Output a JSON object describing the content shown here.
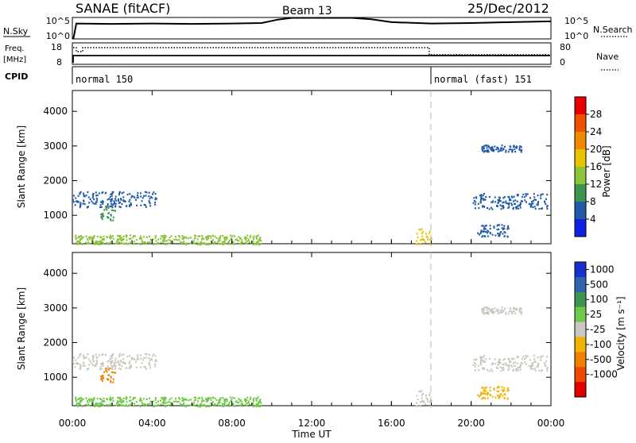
{
  "header": {
    "station": "SANAE (fitACF)",
    "beam": "Beam 13",
    "date": "25/Dec/2012"
  },
  "panels": {
    "nsky": {
      "label": "N.Sky",
      "right_label": "N.Search",
      "left_ticks": [
        "10^5",
        "10^0"
      ],
      "right_ticks": [
        "10^5",
        "10^0"
      ]
    },
    "freq": {
      "label_line1": "Freq.",
      "label_line2": "[MHz]",
      "right_label": "Nave",
      "left_ticks": [
        "18",
        "8"
      ],
      "right_ticks": [
        "80",
        "0"
      ]
    },
    "cpid": {
      "label": "CPID",
      "segments": [
        {
          "start_hour": 0.0,
          "text": "normal 150"
        },
        {
          "start_hour": 18.0,
          "text": "normal (fast) 151"
        }
      ]
    }
  },
  "x_axis": {
    "title": "Time UT",
    "ticks": [
      "00:00",
      "04:00",
      "08:00",
      "12:00",
      "16:00",
      "20:00",
      "00:00"
    ]
  },
  "range_axis": {
    "title": "Slant Range [km]",
    "ticks": [
      "4000",
      "3000",
      "2000",
      "1000"
    ]
  },
  "power_scale": {
    "title": "Power [dB]",
    "ticks": [
      "28",
      "24",
      "20",
      "16",
      "12",
      "8",
      "4"
    ],
    "colors": [
      "#e80000",
      "#f05000",
      "#f08800",
      "#e8c400",
      "#8cc43c",
      "#3c9650",
      "#205aa8",
      "#1020e0"
    ]
  },
  "velocity_scale": {
    "title": "Velocity [m s⁻¹]",
    "ticks": [
      "1000",
      "500",
      "100",
      "25",
      "-25",
      "-100",
      "-500",
      "-1000"
    ],
    "colors": [
      "#1830d0",
      "#2c64b0",
      "#3c9650",
      "#70c848",
      "#c8c8c0",
      "#f0b400",
      "#f08000",
      "#f04800",
      "#e00000"
    ]
  },
  "chart_data": {
    "type": "heatmap",
    "title": "SANAE (fitACF)  Beam 13  25/Dec/2012",
    "xlabel": "Time UT",
    "ylabel": "Slant Range [km]",
    "xlim_hours": [
      0,
      24
    ],
    "ylim_km": [
      180,
      4600
    ],
    "mode_change_hour": 18.0,
    "nsky_trace": [
      [
        0.2,
        0.72
      ],
      [
        2,
        0.7
      ],
      [
        4,
        0.72
      ],
      [
        6,
        0.7
      ],
      [
        8,
        0.72
      ],
      [
        9.5,
        0.74
      ],
      [
        10.3,
        0.9
      ],
      [
        11,
        0.98
      ],
      [
        14,
        0.98
      ],
      [
        15,
        0.92
      ],
      [
        16,
        0.78
      ],
      [
        18,
        0.72
      ],
      [
        20,
        0.74
      ],
      [
        22,
        0.78
      ],
      [
        24,
        0.82
      ]
    ],
    "echo_regions": [
      {
        "name": "band-1500km-morning",
        "t0": 0.0,
        "t1": 4.3,
        "r0": 1250,
        "r1": 1700,
        "power_color": "#205aa8",
        "vel_color": "#c8c8c0"
      },
      {
        "name": "band-1000km-early",
        "t0": 1.4,
        "t1": 2.2,
        "r0": 850,
        "r1": 1300,
        "power_color": "#3c9650",
        "vel_color": "#f08000"
      },
      {
        "name": "near-range-clutter",
        "t0": 0.1,
        "t1": 9.5,
        "r0": 180,
        "r1": 450,
        "power_color": "#8cc43c",
        "vel_color": "#70c848"
      },
      {
        "name": "near-range-1730UT",
        "t0": 17.2,
        "t1": 18.0,
        "r0": 180,
        "r1": 650,
        "power_color": "#e8c400",
        "vel_color": "#c8c8c0"
      },
      {
        "name": "band-1500km-evening",
        "t0": 20.0,
        "t1": 23.8,
        "r0": 1200,
        "r1": 1650,
        "power_color": "#205aa8",
        "vel_color": "#c8c8c0"
      },
      {
        "name": "band-600km-evening",
        "t0": 20.3,
        "t1": 21.9,
        "r0": 400,
        "r1": 750,
        "power_color": "#205aa8",
        "vel_color": "#f0b400"
      },
      {
        "name": "band-3000km-evening",
        "t0": 20.5,
        "t1": 22.5,
        "r0": 2850,
        "r1": 3050,
        "power_color": "#205aa8",
        "vel_color": "#c8c8c0"
      }
    ]
  }
}
